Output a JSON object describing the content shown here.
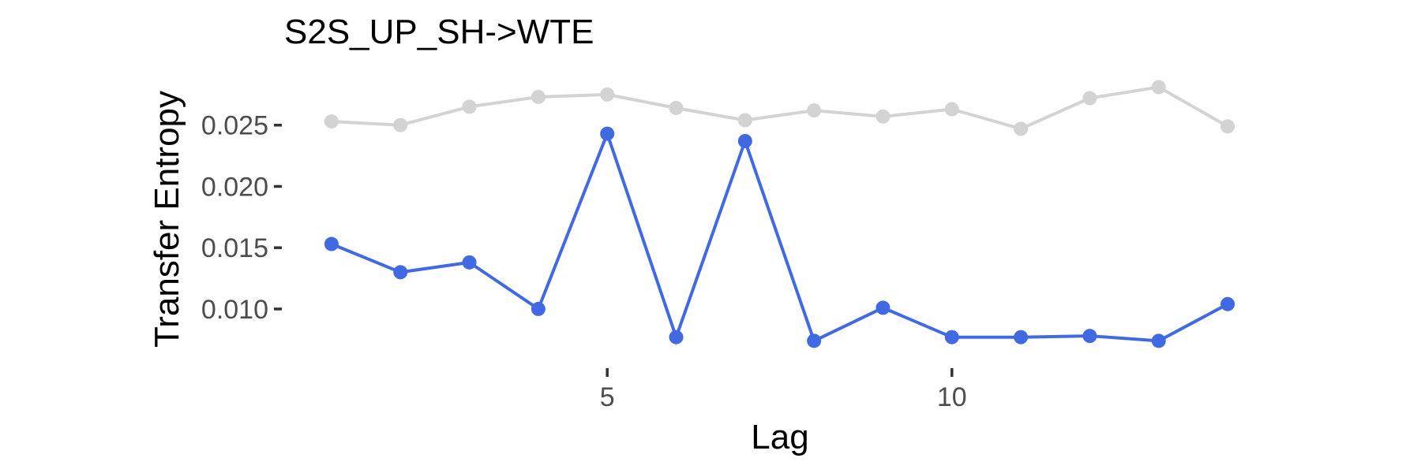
{
  "chart_data": {
    "type": "line",
    "title": "S2S_UP_SH->WTE",
    "xlabel": "Lag",
    "ylabel": "Transfer Entropy",
    "xlim": [
      0.6,
      14.4
    ],
    "ylim": [
      0.0053,
      0.0291
    ],
    "x_ticks": [
      5,
      10
    ],
    "x_tick_labels": [
      "5",
      "10"
    ],
    "y_ticks": [
      0.01,
      0.015,
      0.02,
      0.025
    ],
    "y_tick_labels": [
      "0.010",
      "0.015",
      "0.020",
      "0.025"
    ],
    "grid": false,
    "legend": "none",
    "x": [
      1,
      2,
      3,
      4,
      5,
      6,
      7,
      8,
      9,
      10,
      11,
      12,
      13,
      14
    ],
    "series": [
      {
        "color": "#d3d3d3",
        "values": [
          0.0253,
          0.025,
          0.0265,
          0.0273,
          0.0275,
          0.0264,
          0.0254,
          0.0262,
          0.0257,
          0.0263,
          0.0247,
          0.0272,
          0.0281,
          0.0249
        ]
      },
      {
        "color": "#4169e1",
        "values": [
          0.0153,
          0.013,
          0.0138,
          0.01,
          0.0243,
          0.0077,
          0.0237,
          0.0074,
          0.0101,
          0.0077,
          0.0077,
          0.0078,
          0.0074,
          0.0104
        ]
      }
    ]
  }
}
